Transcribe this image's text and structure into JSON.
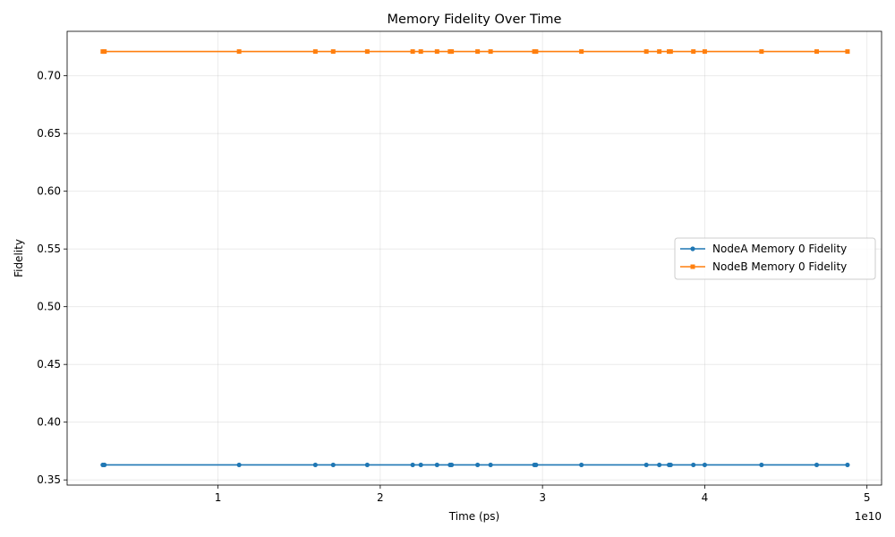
{
  "chart_data": {
    "type": "line",
    "title": "Memory Fidelity Over Time",
    "xlabel": "Time (ps)",
    "ylabel": "Fidelity",
    "x_offset_label": "1e10",
    "xlim": [
      700000000,
      50900000000
    ],
    "ylim": [
      0.3455,
      0.7385
    ],
    "x_ticks": [
      10000000000,
      20000000000,
      30000000000,
      40000000000,
      50000000000
    ],
    "x_tick_labels": [
      "1",
      "2",
      "3",
      "4",
      "5"
    ],
    "y_ticks": [
      0.35,
      0.4,
      0.45,
      0.5,
      0.55,
      0.6,
      0.65,
      0.7
    ],
    "y_tick_labels": [
      "0.35",
      "0.40",
      "0.45",
      "0.50",
      "0.55",
      "0.60",
      "0.65",
      "0.70"
    ],
    "grid": true,
    "legend_position": "center-right",
    "x": [
      2900000000,
      3000000000,
      11300000000,
      16000000000,
      17100000000,
      19200000000,
      22000000000,
      22500000000,
      23500000000,
      24300000000,
      24400000000,
      26000000000,
      26800000000,
      29500000000,
      29600000000,
      32400000000,
      36400000000,
      37200000000,
      37800000000,
      37900000000,
      39300000000,
      40000000000,
      43500000000,
      46900000000,
      48800000000
    ],
    "series": [
      {
        "name": "NodeA Memory 0 Fidelity",
        "color": "#1f77b4",
        "marker": "circle",
        "values": [
          0.363,
          0.363,
          0.363,
          0.363,
          0.363,
          0.363,
          0.363,
          0.363,
          0.363,
          0.363,
          0.363,
          0.363,
          0.363,
          0.363,
          0.363,
          0.363,
          0.363,
          0.363,
          0.363,
          0.363,
          0.363,
          0.363,
          0.363,
          0.363,
          0.363
        ]
      },
      {
        "name": "NodeB Memory 0 Fidelity",
        "color": "#ff7f0e",
        "marker": "square",
        "values": [
          0.721,
          0.721,
          0.721,
          0.721,
          0.721,
          0.721,
          0.721,
          0.721,
          0.721,
          0.721,
          0.721,
          0.721,
          0.721,
          0.721,
          0.721,
          0.721,
          0.721,
          0.721,
          0.721,
          0.721,
          0.721,
          0.721,
          0.721,
          0.721,
          0.721
        ]
      }
    ]
  }
}
